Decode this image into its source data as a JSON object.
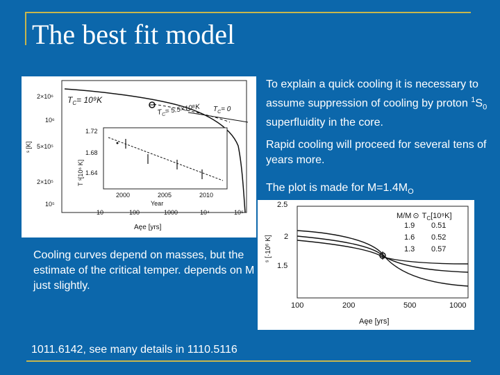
{
  "slide": {
    "title": "The best fit model",
    "paragraph_1": "To explain a quick cooling it is necessary to assume suppression of cooling by proton ",
    "p1_sup": "1",
    "p1_s": "S",
    "p1_sub": "0",
    "p1_end": " superfluidity in the core.",
    "paragraph_2": "Rapid cooling will proceed for several tens of years more.",
    "paragraph_3": "The plot is made for M=1.4M",
    "p3_sub": "O",
    "paragraph_4": "Cooling curves depend on masses, but the estimate of the critical temper. depends on M just slightly.",
    "paragraph_5": "1011.6142, see many details in 1110.5116"
  },
  "colors": {
    "background": "#0c67ab",
    "rule": "#c8b64c",
    "text": "#ffffff"
  },
  "figure_1": {
    "y_ticks": [
      "2×10⁶",
      "10⁶",
      "5×10⁵",
      "2×10⁵",
      "10⁵"
    ],
    "y_label": "ˢ [K]",
    "x_ticks": [
      "10",
      "100",
      "1000",
      "10⁴",
      "10⁵"
    ],
    "x_label": "Aȩe [yrs]",
    "tc_main": "T",
    "tc_main_sub": "C",
    "tc_main_rest": "= 10⁹K",
    "tc_second": "T",
    "tc_second_sub": "C",
    "tc_second_rest": "= 5.5×10⁸K",
    "tc_zero": "T",
    "tc_zero_sub": "C",
    "tc_zero_rest": "= 0",
    "inset": {
      "y_ticks": [
        "1.72",
        "1.68",
        "1.64"
      ],
      "y_label": "T ˢ[10⁶ K]",
      "x_ticks": [
        "2000",
        "2005",
        "2010"
      ],
      "x_label": "Year"
    }
  },
  "figure_2": {
    "y_ticks": [
      "2.5",
      "2",
      "1.5"
    ],
    "y_label": "ˢ [·10⁶ K]",
    "x_ticks": [
      "100",
      "200",
      "500",
      "1000"
    ],
    "x_label": "Aȩe [yrs]",
    "legend_head_m": "M/M",
    "legend_head_t": "T",
    "legend_head_t_sub": "C",
    "legend_head_unit": "[10⁹K]",
    "legend_rows": [
      {
        "m": "1.9",
        "t": "0.51"
      },
      {
        "m": "1.6",
        "t": "0.52"
      },
      {
        "m": "1.3",
        "t": "0.57"
      }
    ]
  }
}
